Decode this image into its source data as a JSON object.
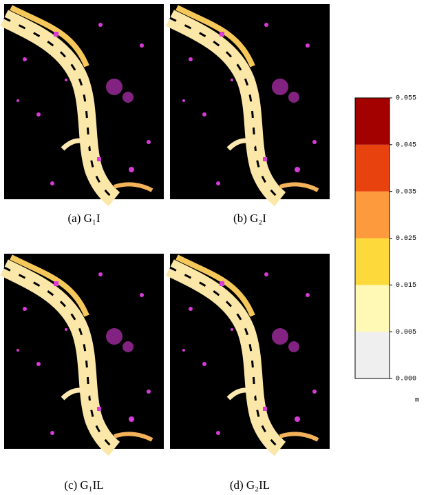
{
  "panels": [
    {
      "caption": "(a) G₁I"
    },
    {
      "caption": "(b) G₂I"
    },
    {
      "caption": "(c) G₁IL"
    },
    {
      "caption": "(d) G₂IL"
    }
  ],
  "colorbar": {
    "ticks": [
      {
        "value": 0,
        "label": "0.000"
      },
      0.005,
      0.015,
      0.025,
      0.035,
      0.045,
      0.055
    ],
    "colors": [
      "#efefef",
      "#fff9b5",
      "#fed93c",
      "#fc9a3d",
      "#e8420f",
      "#a30000"
    ],
    "unit": "m"
  }
}
